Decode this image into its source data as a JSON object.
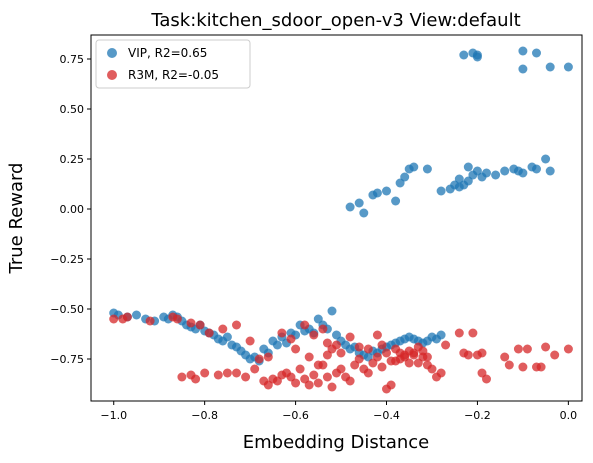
{
  "chart_data": {
    "type": "scatter",
    "title": "Task:kitchen_sdoor_open-v3 View:default",
    "xlabel": "Embedding Distance",
    "ylabel": "True Reward",
    "xlim": [
      -1.05,
      0.03
    ],
    "ylim": [
      -0.96,
      0.87
    ],
    "xticks": [
      -1.0,
      -0.8,
      -0.6,
      -0.4,
      -0.2,
      0.0
    ],
    "xtick_labels": [
      "−1.0",
      "−0.8",
      "−0.6",
      "−0.4",
      "−0.2",
      "0.0"
    ],
    "yticks": [
      -0.75,
      -0.5,
      -0.25,
      0.0,
      0.25,
      0.5,
      0.75
    ],
    "ytick_labels": [
      "−0.75",
      "−0.50",
      "−0.25",
      "0.00",
      "0.25",
      "0.50",
      "0.75"
    ],
    "grid": false,
    "legend_position": "top-left",
    "series": [
      {
        "name": "VIP, R2=0.65",
        "color": "#1f77b4",
        "points": [
          [
            -1.0,
            -0.52
          ],
          [
            -0.99,
            -0.53
          ],
          [
            -0.97,
            -0.54
          ],
          [
            -0.95,
            -0.53
          ],
          [
            -0.93,
            -0.55
          ],
          [
            -0.91,
            -0.56
          ],
          [
            -0.89,
            -0.54
          ],
          [
            -0.88,
            -0.55
          ],
          [
            -0.87,
            -0.53
          ],
          [
            -0.86,
            -0.54
          ],
          [
            -0.85,
            -0.56
          ],
          [
            -0.84,
            -0.58
          ],
          [
            -0.83,
            -0.59
          ],
          [
            -0.82,
            -0.6
          ],
          [
            -0.81,
            -0.58
          ],
          [
            -0.8,
            -0.61
          ],
          [
            -0.79,
            -0.62
          ],
          [
            -0.78,
            -0.63
          ],
          [
            -0.77,
            -0.65
          ],
          [
            -0.76,
            -0.66
          ],
          [
            -0.75,
            -0.64
          ],
          [
            -0.74,
            -0.68
          ],
          [
            -0.73,
            -0.69
          ],
          [
            -0.72,
            -0.71
          ],
          [
            -0.71,
            -0.73
          ],
          [
            -0.7,
            -0.75
          ],
          [
            -0.69,
            -0.74
          ],
          [
            -0.68,
            -0.76
          ],
          [
            -0.67,
            -0.7
          ],
          [
            -0.66,
            -0.72
          ],
          [
            -0.65,
            -0.66
          ],
          [
            -0.64,
            -0.68
          ],
          [
            -0.63,
            -0.64
          ],
          [
            -0.62,
            -0.67
          ],
          [
            -0.61,
            -0.62
          ],
          [
            -0.6,
            -0.63
          ],
          [
            -0.59,
            -0.58
          ],
          [
            -0.58,
            -0.61
          ],
          [
            -0.57,
            -0.6
          ],
          [
            -0.56,
            -0.62
          ],
          [
            -0.55,
            -0.55
          ],
          [
            -0.54,
            -0.58
          ],
          [
            -0.53,
            -0.6
          ],
          [
            -0.52,
            -0.51
          ],
          [
            -0.51,
            -0.63
          ],
          [
            -0.5,
            -0.66
          ],
          [
            -0.49,
            -0.68
          ],
          [
            -0.48,
            -0.7
          ],
          [
            -0.47,
            -0.69
          ],
          [
            -0.46,
            -0.72
          ],
          [
            -0.45,
            -0.73
          ],
          [
            -0.44,
            -0.74
          ],
          [
            -0.43,
            -0.71
          ],
          [
            -0.42,
            -0.72
          ],
          [
            -0.41,
            -0.7
          ],
          [
            -0.4,
            -0.69
          ],
          [
            -0.39,
            -0.68
          ],
          [
            -0.38,
            -0.67
          ],
          [
            -0.37,
            -0.66
          ],
          [
            -0.36,
            -0.65
          ],
          [
            -0.35,
            -0.64
          ],
          [
            -0.34,
            -0.65
          ],
          [
            -0.33,
            -0.66
          ],
          [
            -0.32,
            -0.67
          ],
          [
            -0.31,
            -0.66
          ],
          [
            -0.3,
            -0.64
          ],
          [
            -0.29,
            -0.65
          ],
          [
            -0.28,
            -0.63
          ],
          [
            -0.48,
            0.01
          ],
          [
            -0.46,
            0.03
          ],
          [
            -0.45,
            -0.02
          ],
          [
            -0.43,
            0.07
          ],
          [
            -0.42,
            0.08
          ],
          [
            -0.4,
            0.09
          ],
          [
            -0.38,
            0.04
          ],
          [
            -0.37,
            0.13
          ],
          [
            -0.36,
            0.16
          ],
          [
            -0.35,
            0.2
          ],
          [
            -0.34,
            0.21
          ],
          [
            -0.31,
            0.2
          ],
          [
            -0.28,
            0.09
          ],
          [
            -0.26,
            0.1
          ],
          [
            -0.25,
            0.12
          ],
          [
            -0.24,
            0.15
          ],
          [
            -0.23,
            0.12
          ],
          [
            -0.22,
            0.14
          ],
          [
            -0.21,
            0.17
          ],
          [
            -0.2,
            0.19
          ],
          [
            -0.19,
            0.16
          ],
          [
            -0.18,
            0.18
          ],
          [
            -0.16,
            0.17
          ],
          [
            -0.14,
            0.19
          ],
          [
            -0.12,
            0.2
          ],
          [
            -0.11,
            0.19
          ],
          [
            -0.1,
            0.18
          ],
          [
            -0.08,
            0.21
          ],
          [
            -0.07,
            0.2
          ],
          [
            -0.05,
            0.25
          ],
          [
            -0.04,
            0.19
          ],
          [
            -0.24,
            0.11
          ],
          [
            -0.22,
            0.21
          ],
          [
            -0.23,
            0.77
          ],
          [
            -0.21,
            0.78
          ],
          [
            -0.2,
            0.77
          ],
          [
            -0.2,
            0.76
          ],
          [
            -0.1,
            0.79
          ],
          [
            -0.1,
            0.7
          ],
          [
            -0.07,
            0.78
          ],
          [
            -0.04,
            0.71
          ],
          [
            0.0,
            0.71
          ]
        ]
      },
      {
        "name": "R3M, R2=-0.05",
        "color": "#d62728",
        "points": [
          [
            -1.0,
            -0.55
          ],
          [
            -0.98,
            -0.55
          ],
          [
            -0.97,
            -0.54
          ],
          [
            -0.92,
            -0.56
          ],
          [
            -0.87,
            -0.54
          ],
          [
            -0.86,
            -0.55
          ],
          [
            -0.83,
            -0.57
          ],
          [
            -0.81,
            -0.58
          ],
          [
            -0.79,
            -0.62
          ],
          [
            -0.76,
            -0.6
          ],
          [
            -0.73,
            -0.58
          ],
          [
            -0.7,
            -0.66
          ],
          [
            -0.68,
            -0.75
          ],
          [
            -0.66,
            -0.74
          ],
          [
            -0.63,
            -0.62
          ],
          [
            -0.61,
            -0.65
          ],
          [
            -0.6,
            -0.7
          ],
          [
            -0.58,
            -0.58
          ],
          [
            -0.56,
            -0.63
          ],
          [
            -0.54,
            -0.6
          ],
          [
            -0.53,
            -0.67
          ],
          [
            -0.52,
            -0.7
          ],
          [
            -0.51,
            -0.68
          ],
          [
            -0.5,
            -0.72
          ],
          [
            -0.85,
            -0.84
          ],
          [
            -0.83,
            -0.83
          ],
          [
            -0.82,
            -0.85
          ],
          [
            -0.8,
            -0.82
          ],
          [
            -0.77,
            -0.83
          ],
          [
            -0.75,
            -0.82
          ],
          [
            -0.73,
            -0.82
          ],
          [
            -0.71,
            -0.84
          ],
          [
            -0.69,
            -0.8
          ],
          [
            -0.67,
            -0.86
          ],
          [
            -0.66,
            -0.88
          ],
          [
            -0.65,
            -0.85
          ],
          [
            -0.64,
            -0.86
          ],
          [
            -0.63,
            -0.83
          ],
          [
            -0.62,
            -0.82
          ],
          [
            -0.61,
            -0.84
          ],
          [
            -0.6,
            -0.87
          ],
          [
            -0.59,
            -0.8
          ],
          [
            -0.58,
            -0.85
          ],
          [
            -0.57,
            -0.88
          ],
          [
            -0.56,
            -0.83
          ],
          [
            -0.55,
            -0.87
          ],
          [
            -0.54,
            -0.78
          ],
          [
            -0.53,
            -0.84
          ],
          [
            -0.52,
            -0.89
          ],
          [
            -0.51,
            -0.82
          ],
          [
            -0.5,
            -0.8
          ],
          [
            -0.49,
            -0.84
          ],
          [
            -0.48,
            -0.86
          ],
          [
            -0.47,
            -0.78
          ],
          [
            -0.46,
            -0.75
          ],
          [
            -0.45,
            -0.8
          ],
          [
            -0.44,
            -0.82
          ],
          [
            -0.43,
            -0.77
          ],
          [
            -0.42,
            -0.74
          ],
          [
            -0.41,
            -0.79
          ],
          [
            -0.4,
            -0.9
          ],
          [
            -0.39,
            -0.88
          ],
          [
            -0.38,
            -0.76
          ],
          [
            -0.37,
            -0.72
          ],
          [
            -0.36,
            -0.74
          ],
          [
            -0.35,
            -0.71
          ],
          [
            -0.34,
            -0.73
          ],
          [
            -0.33,
            -0.77
          ],
          [
            -0.32,
            -0.74
          ],
          [
            -0.31,
            -0.78
          ],
          [
            -0.3,
            -0.8
          ],
          [
            -0.29,
            -0.84
          ],
          [
            -0.28,
            -0.82
          ],
          [
            -0.57,
            -0.74
          ],
          [
            -0.55,
            -0.78
          ],
          [
            -0.53,
            -0.73
          ],
          [
            -0.48,
            -0.64
          ],
          [
            -0.46,
            -0.69
          ],
          [
            -0.44,
            -0.7
          ],
          [
            -0.42,
            -0.63
          ],
          [
            -0.41,
            -0.68
          ],
          [
            -0.4,
            -0.72
          ],
          [
            -0.39,
            -0.76
          ],
          [
            -0.38,
            -0.7
          ],
          [
            -0.37,
            -0.75
          ],
          [
            -0.36,
            -0.73
          ],
          [
            -0.35,
            -0.77
          ],
          [
            -0.34,
            -0.72
          ],
          [
            -0.33,
            -0.69
          ],
          [
            -0.32,
            -0.71
          ],
          [
            -0.31,
            -0.74
          ],
          [
            -0.27,
            -0.68
          ],
          [
            -0.24,
            -0.62
          ],
          [
            -0.23,
            -0.72
          ],
          [
            -0.22,
            -0.73
          ],
          [
            -0.21,
            -0.62
          ],
          [
            -0.2,
            -0.73
          ],
          [
            -0.19,
            -0.72
          ],
          [
            -0.19,
            -0.82
          ],
          [
            -0.18,
            -0.85
          ],
          [
            -0.14,
            -0.74
          ],
          [
            -0.13,
            -0.78
          ],
          [
            -0.11,
            -0.7
          ],
          [
            -0.1,
            -0.79
          ],
          [
            -0.09,
            -0.7
          ],
          [
            -0.07,
            -0.79
          ],
          [
            -0.06,
            -0.79
          ],
          [
            -0.05,
            -0.69
          ],
          [
            -0.03,
            -0.73
          ],
          [
            0.0,
            -0.7
          ]
        ]
      }
    ]
  }
}
